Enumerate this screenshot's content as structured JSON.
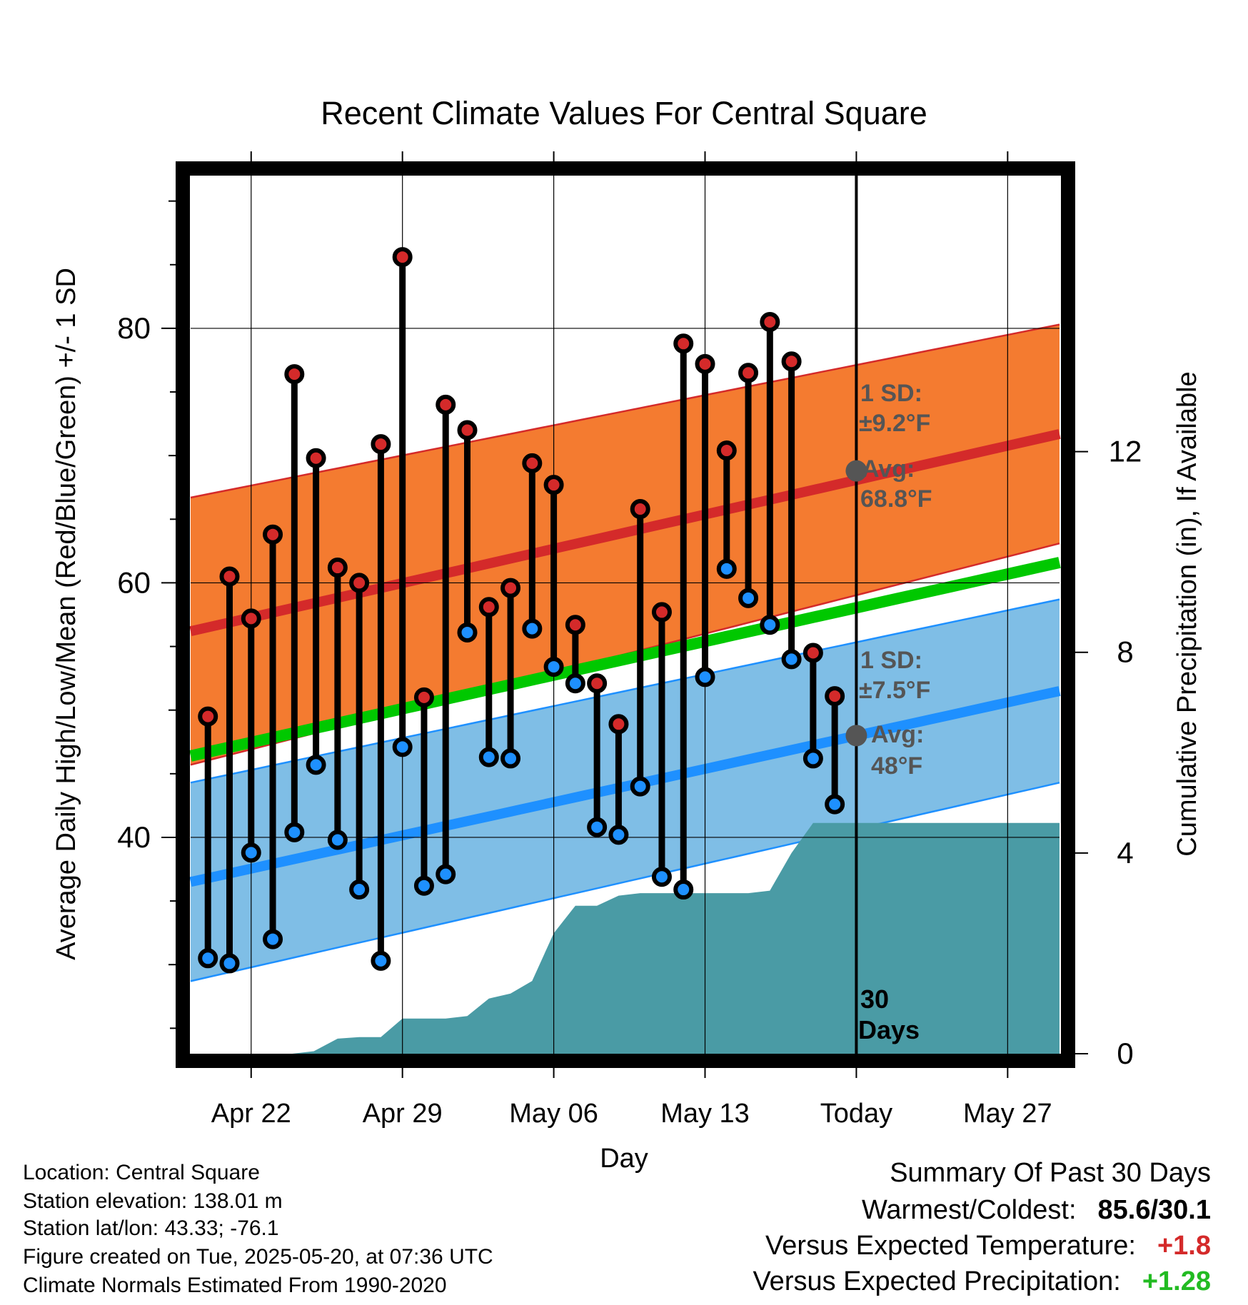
{
  "chart_data": {
    "type": "line",
    "title": "Recent Climate Values For Central Square",
    "xlabel": "Day",
    "ylabel": "Average Daily High/Low/Mean (Red/Blue/Green) +/- 1 SD",
    "y2label": "Cumulative Precipitation (in), If Available",
    "xlim": [
      -2.8,
      37.4
    ],
    "ylim": [
      23,
      92
    ],
    "y2lim": [
      0,
      17.5
    ],
    "x_ticks": [
      {
        "day": 0,
        "label": "Apr 22"
      },
      {
        "day": 7,
        "label": "Apr 29"
      },
      {
        "day": 14,
        "label": "May 06"
      },
      {
        "day": 21,
        "label": "May 13"
      },
      {
        "day": 28,
        "label": "Today"
      },
      {
        "day": 35,
        "label": "May 27"
      }
    ],
    "y_ticks": [
      40,
      60,
      80
    ],
    "y2_ticks": [
      0,
      4,
      8,
      12
    ],
    "normal_high": {
      "start": 56.2,
      "end": 71.7,
      "sd_start": 10.5,
      "sd_end": 8.6
    },
    "normal_low": {
      "start": 36.5,
      "end": 51.5,
      "sd_start": 7.8,
      "sd_end": 7.2
    },
    "normal_mean": {
      "start": 46.4,
      "end": 61.6
    },
    "daily": [
      {
        "day": -2,
        "high": 49.5,
        "low": 30.5
      },
      {
        "day": -1,
        "high": 60.5,
        "low": 30.1
      },
      {
        "day": 0,
        "high": 57.2,
        "low": 38.8
      },
      {
        "day": 1,
        "high": 63.8,
        "low": 32.0
      },
      {
        "day": 2,
        "high": 76.4,
        "low": 40.4
      },
      {
        "day": 3,
        "high": 69.8,
        "low": 45.7
      },
      {
        "day": 4,
        "high": 61.2,
        "low": 39.8
      },
      {
        "day": 5,
        "high": 60.0,
        "low": 35.9
      },
      {
        "day": 6,
        "high": 70.9,
        "low": 30.3
      },
      {
        "day": 7,
        "high": 85.6,
        "low": 47.1
      },
      {
        "day": 8,
        "high": 51.0,
        "low": 36.2
      },
      {
        "day": 9,
        "high": 74.0,
        "low": 37.1
      },
      {
        "day": 10,
        "high": 72.0,
        "low": 56.1
      },
      {
        "day": 11,
        "high": 58.1,
        "low": 46.3
      },
      {
        "day": 12,
        "high": 59.6,
        "low": 46.2
      },
      {
        "day": 13,
        "high": 69.4,
        "low": 56.4
      },
      {
        "day": 14,
        "high": 67.7,
        "low": 53.4
      },
      {
        "day": 15,
        "high": 56.7,
        "low": 52.1
      },
      {
        "day": 16,
        "high": 52.1,
        "low": 40.8
      },
      {
        "day": 17,
        "high": 48.9,
        "low": 40.2
      },
      {
        "day": 18,
        "high": 65.8,
        "low": 44.0
      },
      {
        "day": 19,
        "high": 57.7,
        "low": 36.9
      },
      {
        "day": 20,
        "high": 78.8,
        "low": 35.9
      },
      {
        "day": 21,
        "high": 77.2,
        "low": 52.6
      },
      {
        "day": 22,
        "high": 70.4,
        "low": 61.1
      },
      {
        "day": 23,
        "high": 76.5,
        "low": 58.8
      },
      {
        "day": 24,
        "high": 80.5,
        "low": 56.7
      },
      {
        "day": 25,
        "high": 77.4,
        "low": 54.0
      },
      {
        "day": 26,
        "high": 54.5,
        "low": 46.2
      },
      {
        "day": 27,
        "high": 51.1,
        "low": 42.6
      }
    ],
    "precip": [
      {
        "day": 0,
        "value": 0
      },
      {
        "day": 0.9,
        "value": 0
      },
      {
        "day": 1.9,
        "value": 0
      },
      {
        "day": 2.9,
        "value": 0.05
      },
      {
        "day": 4.0,
        "value": 0.3
      },
      {
        "day": 5.0,
        "value": 0.33
      },
      {
        "day": 6.0,
        "value": 0.33
      },
      {
        "day": 7.0,
        "value": 0.7
      },
      {
        "day": 8.0,
        "value": 0.7
      },
      {
        "day": 9.0,
        "value": 0.7
      },
      {
        "day": 10.0,
        "value": 0.75
      },
      {
        "day": 11.0,
        "value": 1.1
      },
      {
        "day": 12.0,
        "value": 1.2
      },
      {
        "day": 13.0,
        "value": 1.45
      },
      {
        "day": 14.0,
        "value": 2.4
      },
      {
        "day": 15.0,
        "value": 2.95
      },
      {
        "day": 16.0,
        "value": 2.95
      },
      {
        "day": 17.0,
        "value": 3.15
      },
      {
        "day": 18.0,
        "value": 3.2
      },
      {
        "day": 19.0,
        "value": 3.2
      },
      {
        "day": 20.0,
        "value": 3.2
      },
      {
        "day": 21.0,
        "value": 3.2
      },
      {
        "day": 22.0,
        "value": 3.2
      },
      {
        "day": 23.0,
        "value": 3.2
      },
      {
        "day": 24.0,
        "value": 3.25
      },
      {
        "day": 25.0,
        "value": 4.0
      },
      {
        "day": 26.0,
        "value": 4.6
      },
      {
        "day": 37.4,
        "value": 4.6
      }
    ],
    "annotations": {
      "high_sd_title": "1 SD:",
      "high_sd_value": "±9.2°F",
      "high_avg_title": "Avg:",
      "high_avg_value": "68.8°F",
      "low_sd_title": "1 SD:",
      "low_sd_value": "±7.5°F",
      "low_avg_title": "Avg:",
      "low_avg_value": "48°F",
      "days_line1": "30",
      "days_line2": "Days"
    },
    "today_day": 28,
    "today_high_avg": 68.8,
    "today_low_avg": 48.0,
    "grid": true,
    "colors": {
      "high_band": "#F47B30",
      "high_line": "#D42A2A",
      "low_band": "#7FBEE6",
      "low_line": "#1E90FF",
      "mean_line": "#00C800",
      "precip": "#4A9BA5",
      "high_marker": "#D42A2A",
      "low_marker": "#1E90FF",
      "avg_marker": "#555555",
      "annotation": "#555555",
      "positive_temp": "#D42A2A",
      "positive_precip": "#22BB22"
    }
  },
  "info": {
    "location": "Location: Central Square",
    "elevation": "Station elevation: 138.01 m",
    "latlon": "Station lat/lon: 43.33; -76.1",
    "created": "Figure created on Tue, 2025-05-20, at 07:36 UTC",
    "normals": "Climate Normals Estimated From 1990-2020"
  },
  "summary": {
    "title": "Summary Of Past 30 Days",
    "warmest_label": "Warmest/Coldest:",
    "warmest_value": "85.6/30.1",
    "temp_label": "Versus Expected Temperature:",
    "temp_value": "+1.8",
    "precip_label": "Versus Expected Precipitation:",
    "precip_value": "+1.28"
  }
}
